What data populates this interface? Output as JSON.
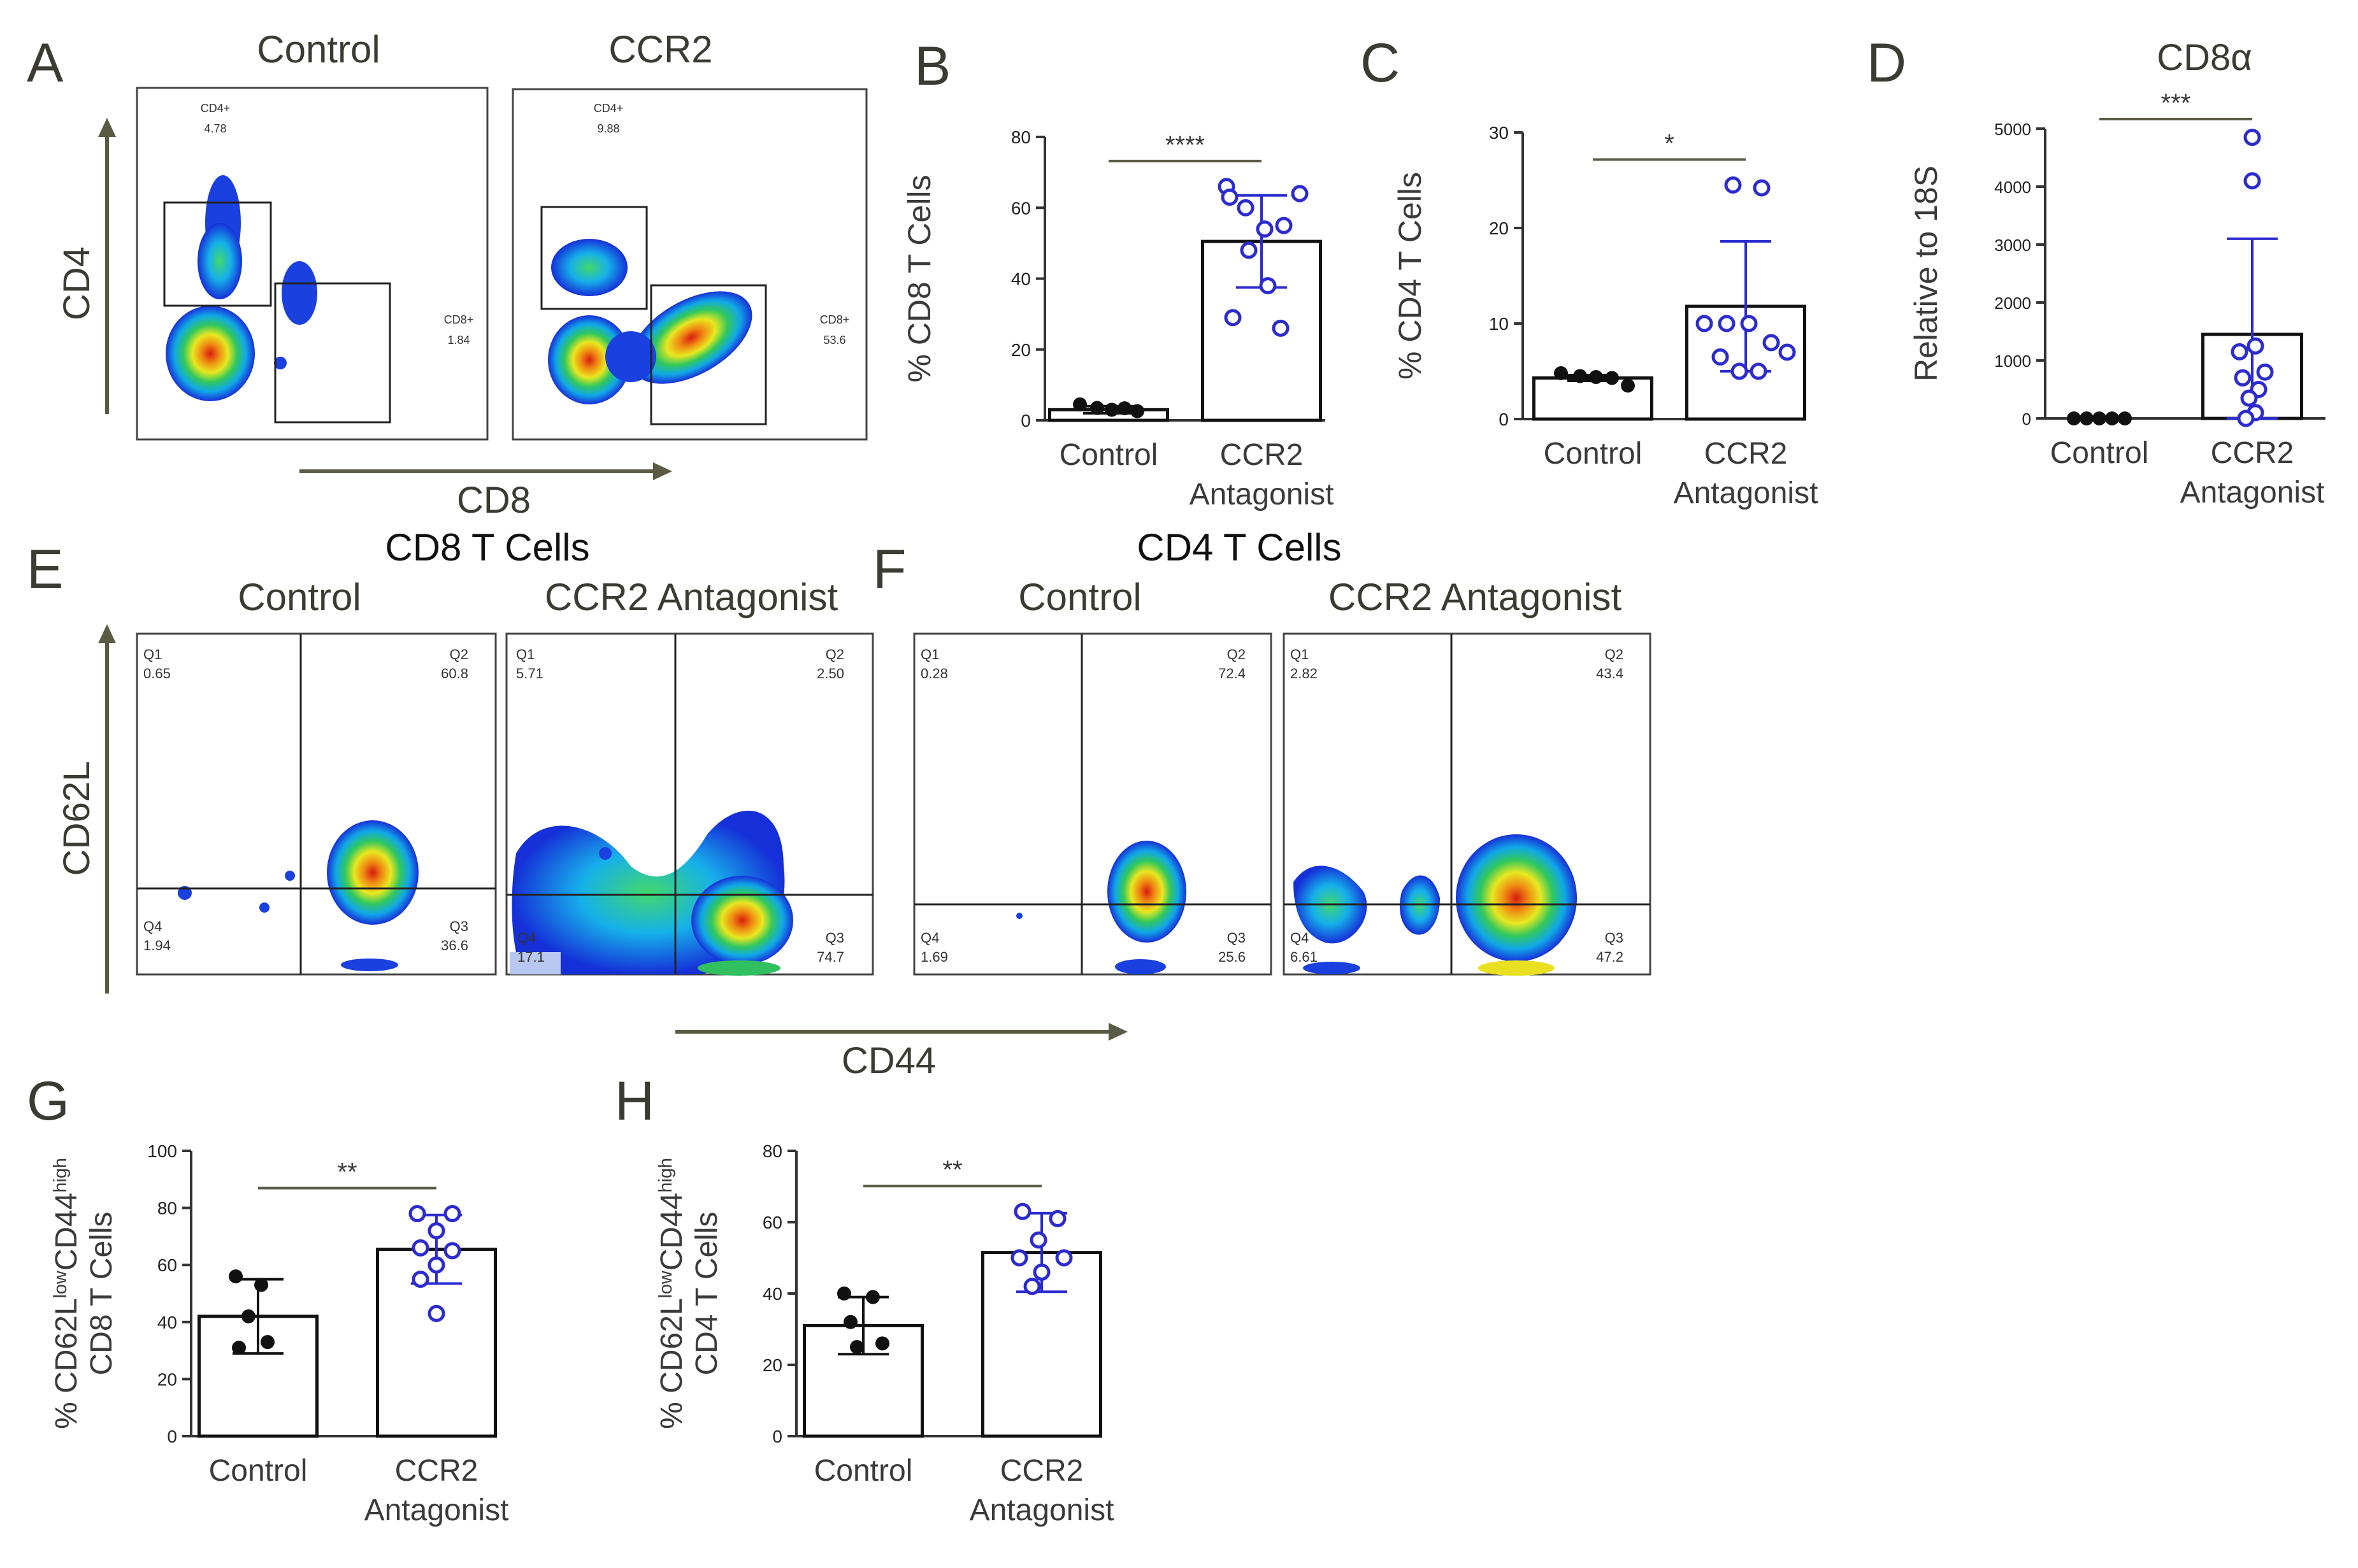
{
  "panel_letters": {
    "A": "A",
    "B": "B",
    "C": "C",
    "D": "D",
    "E": "E",
    "F": "F",
    "G": "G",
    "H": "H"
  },
  "colors": {
    "axis": "#333333",
    "arrow": "#5b5b45",
    "control_dot": "#111111",
    "ccr2_dot": "#2b2bd0",
    "ccr2_errbar": "#2b2bd0",
    "gate": "#222222"
  },
  "flow_a": {
    "titles": [
      "Control",
      "CCR2"
    ],
    "ylabel": "CD4",
    "xlabel": "CD8",
    "gates": [
      {
        "cd4_name": "CD4+",
        "cd4_value": "4.78",
        "cd8_name": "CD8+",
        "cd8_value": "1.84"
      },
      {
        "cd4_name": "CD4+",
        "cd4_value": "9.88",
        "cd8_name": "CD8+",
        "cd8_value": "53.6"
      }
    ]
  },
  "section_e": {
    "header": "CD8 T Cells",
    "titles": [
      "Control",
      "CCR2 Antagonist"
    ],
    "ylabel": "CD62L",
    "quadrants": [
      {
        "q1": "Q1",
        "q1v": "0.65",
        "q2": "Q2",
        "q2v": "60.8",
        "q3": "Q3",
        "q3v": "36.6",
        "q4": "Q4",
        "q4v": "1.94"
      },
      {
        "q1": "Q1",
        "q1v": "5.71",
        "q2": "Q2",
        "q2v": "2.50",
        "q3": "Q3",
        "q3v": "74.7",
        "q4": "Q4",
        "q4v": "17.1"
      }
    ]
  },
  "section_f": {
    "header": "CD4 T Cells",
    "titles": [
      "Control",
      "CCR2 Antagonist"
    ],
    "xlabel": "CD44",
    "quadrants": [
      {
        "q1": "Q1",
        "q1v": "0.28",
        "q2": "Q2",
        "q2v": "72.4",
        "q3": "Q3",
        "q3v": "25.6",
        "q4": "Q4",
        "q4v": "1.69"
      },
      {
        "q1": "Q1",
        "q1v": "2.82",
        "q2": "Q2",
        "q2v": "43.4",
        "q3": "Q3",
        "q3v": "47.2",
        "q4": "Q4",
        "q4v": "6.61"
      }
    ]
  },
  "chart_data": [
    {
      "id": "B",
      "type": "bar",
      "title": "",
      "ylabel": "% CD8 T Cells",
      "ylim": [
        0,
        80
      ],
      "yticks": [
        0,
        20,
        40,
        60,
        80
      ],
      "categories": [
        [
          "Control"
        ],
        [
          "CCR2",
          "Antagonist"
        ]
      ],
      "means": [
        3,
        50.5
      ],
      "sd": [
        1,
        13
      ],
      "points": [
        [
          4.5,
          3.5,
          3,
          3.4,
          2.6
        ],
        [
          66,
          60,
          54,
          55,
          64,
          63,
          48,
          38,
          29,
          26
        ]
      ],
      "significance": "****"
    },
    {
      "id": "C",
      "type": "bar",
      "title": "",
      "ylabel": "% CD4 T Cells",
      "ylim": [
        0,
        30
      ],
      "yticks": [
        0,
        10,
        20,
        30
      ],
      "categories": [
        [
          "Control"
        ],
        [
          "CCR2",
          "Antagonist"
        ]
      ],
      "means": [
        4.3,
        11.8
      ],
      "sd": [
        0.3,
        6.8
      ],
      "points": [
        [
          4.8,
          4.5,
          4.4,
          4.3,
          3.5
        ],
        [
          24.5,
          24.2,
          10,
          10,
          10,
          8,
          7,
          6.5,
          5,
          5
        ]
      ],
      "significance": "*"
    },
    {
      "id": "D",
      "type": "bar",
      "title": "CD8α",
      "ylabel": "Relative to 18S",
      "ylim": [
        0,
        5000
      ],
      "yticks": [
        0,
        1000,
        2000,
        3000,
        4000,
        5000
      ],
      "categories": [
        [
          "Control"
        ],
        [
          "CCR2",
          "Antagonist"
        ]
      ],
      "means": [
        0,
        1450
      ],
      "sd": [
        0,
        1650
      ],
      "points": [
        [
          0,
          0,
          0,
          0,
          0
        ],
        [
          4850,
          4100,
          1250,
          1150,
          800,
          700,
          500,
          350,
          100,
          0
        ]
      ],
      "significance": "***"
    },
    {
      "id": "G",
      "type": "bar",
      "title": "",
      "ylabel": "% CD62Llow CD44high CD8 T Cells",
      "ylabel_parts": {
        "pre": "% CD62L",
        "sup1": "low",
        "mid": "CD44",
        "sup2": "high",
        "line2": "CD8 T Cells"
      },
      "ylim": [
        0,
        100
      ],
      "yticks": [
        0,
        20,
        40,
        60,
        80,
        100
      ],
      "categories": [
        [
          "Control"
        ],
        [
          "CCR2",
          "Antagonist"
        ]
      ],
      "means": [
        42,
        65.5
      ],
      "sd": [
        13,
        12
      ],
      "points": [
        [
          56,
          53,
          42,
          33,
          31
        ],
        [
          78,
          78,
          72,
          66,
          65,
          60,
          55,
          43
        ]
      ],
      "significance": "**"
    },
    {
      "id": "H",
      "type": "bar",
      "title": "",
      "ylabel": "% CD62Llow CD44high CD4 T Cells",
      "ylabel_parts": {
        "pre": "% CD62L",
        "sup1": "low",
        "mid": "CD44",
        "sup2": "high",
        "line2": "CD4 T Cells"
      },
      "ylim": [
        0,
        80
      ],
      "yticks": [
        0,
        20,
        40,
        60,
        80
      ],
      "categories": [
        [
          "Control"
        ],
        [
          "CCR2",
          "Antagonist"
        ]
      ],
      "means": [
        31,
        51.5
      ],
      "sd": [
        8,
        11
      ],
      "points": [
        [
          40,
          39,
          32,
          26,
          25
        ],
        [
          63,
          61,
          55,
          50,
          50,
          46,
          42
        ]
      ],
      "significance": "**"
    }
  ]
}
